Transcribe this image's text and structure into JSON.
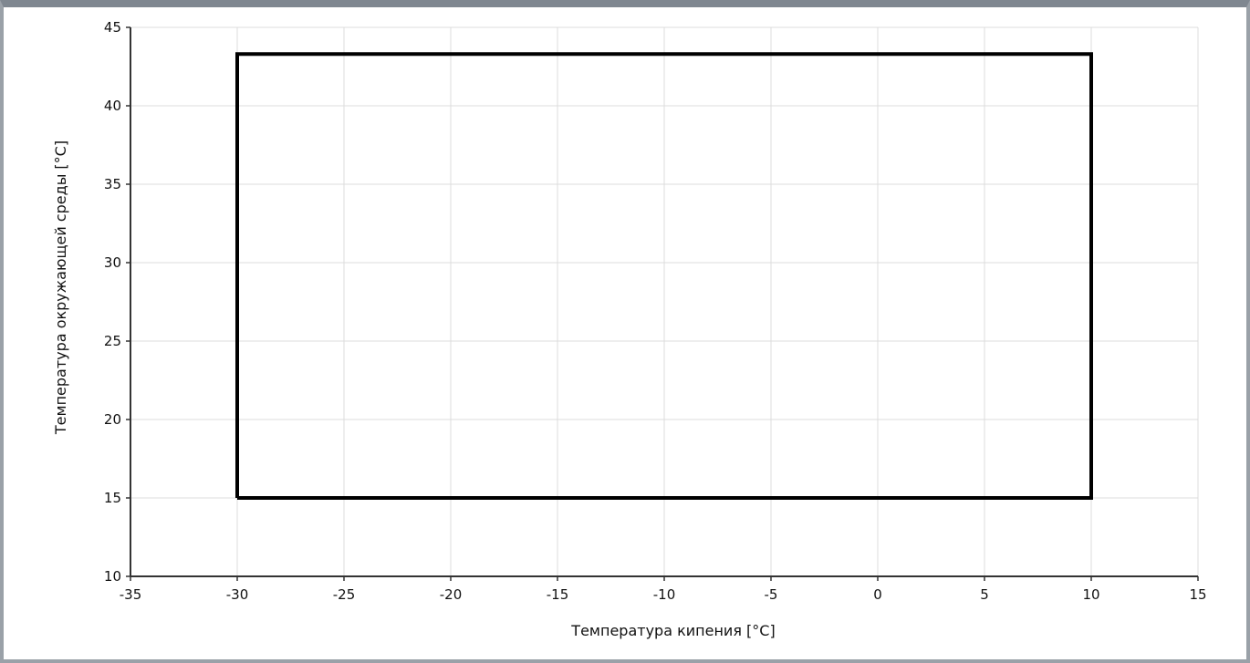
{
  "chart_data": {
    "type": "line",
    "title": "",
    "xlabel": "Температура кипения [°C]",
    "ylabel": "Температура окружающей среды [°C]",
    "xlim": [
      -35,
      15
    ],
    "ylim": [
      10,
      45
    ],
    "x_ticks": [
      -35,
      -30,
      -25,
      -20,
      -15,
      -10,
      -5,
      0,
      5,
      10,
      15
    ],
    "y_ticks": [
      10,
      15,
      20,
      25,
      30,
      35,
      40,
      45
    ],
    "grid": true,
    "series": [
      {
        "x": [
          -30,
          10,
          10,
          -30,
          -30
        ],
        "y": [
          15,
          15,
          43.3,
          43.3,
          15
        ],
        "color": "#000000"
      }
    ]
  }
}
